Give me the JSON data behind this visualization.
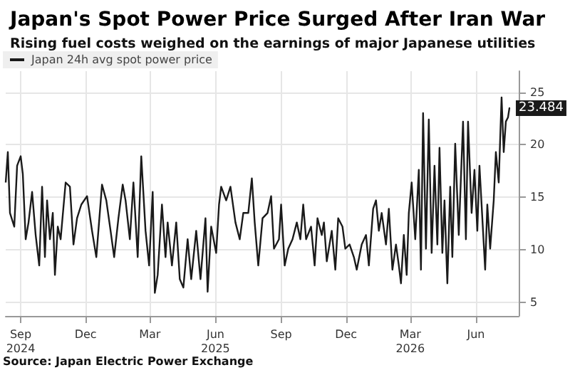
{
  "chart_data": {
    "type": "line",
    "title": "Japan's Spot Power Price Surged After Iran War",
    "subtitle": "Rising fuel costs weighed on the earnings of major Japanese utilities",
    "x": [
      "2024-08-25",
      "2024-08-28",
      "2024-08-31",
      "2024-09-06",
      "2024-09-10",
      "2024-09-15",
      "2024-09-18",
      "2024-09-22",
      "2024-09-26",
      "2024-10-01",
      "2024-10-06",
      "2024-10-11",
      "2024-10-15",
      "2024-10-19",
      "2024-10-22",
      "2024-10-26",
      "2024-10-30",
      "2024-11-02",
      "2024-11-06",
      "2024-11-10",
      "2024-11-17",
      "2024-11-23",
      "2024-11-28",
      "2024-12-03",
      "2024-12-09",
      "2024-12-17",
      "2024-12-24",
      "2024-12-30",
      "2025-01-07",
      "2025-01-13",
      "2025-01-19",
      "2025-01-24",
      "2025-01-30",
      "2025-02-05",
      "2025-02-09",
      "2025-02-15",
      "2025-02-20",
      "2025-02-26",
      "2025-03-03",
      "2025-03-09",
      "2025-03-14",
      "2025-03-19",
      "2025-03-22",
      "2025-03-26",
      "2025-04-01",
      "2025-04-06",
      "2025-04-09",
      "2025-04-15",
      "2025-04-21",
      "2025-04-26",
      "2025-05-01",
      "2025-05-07",
      "2025-05-12",
      "2025-05-19",
      "2025-05-25",
      "2025-06-01",
      "2025-06-04",
      "2025-06-09",
      "2025-06-16",
      "2025-06-20",
      "2025-06-23",
      "2025-06-30",
      "2025-07-06",
      "2025-07-13",
      "2025-07-19",
      "2025-07-24",
      "2025-07-31",
      "2025-08-05",
      "2025-08-09",
      "2025-08-14",
      "2025-08-20",
      "2025-08-27",
      "2025-09-01",
      "2025-09-05",
      "2025-09-12",
      "2025-09-15",
      "2025-09-20",
      "2025-09-25",
      "2025-10-01",
      "2025-10-07",
      "2025-10-12",
      "2025-10-16",
      "2025-10-20",
      "2025-10-27",
      "2025-11-01",
      "2025-11-05",
      "2025-11-11",
      "2025-11-14",
      "2025-11-18",
      "2025-11-25",
      "2025-11-30",
      "2025-12-04",
      "2025-12-10",
      "2025-12-14",
      "2025-12-20",
      "2025-12-26",
      "2025-12-30",
      "2026-01-06",
      "2026-01-12",
      "2026-01-16",
      "2026-01-22",
      "2026-01-26",
      "2026-01-30",
      "2026-02-03",
      "2026-02-09",
      "2026-02-13",
      "2026-02-18",
      "2026-02-23",
      "2026-02-27",
      "2026-03-02",
      "2026-03-06",
      "2026-03-10",
      "2026-03-13",
      "2026-03-17",
      "2026-03-22",
      "2026-03-27",
      "2026-03-30",
      "2026-04-02",
      "2026-04-06",
      "2026-04-10",
      "2026-04-14",
      "2026-04-18",
      "2026-04-22",
      "2026-04-25",
      "2026-04-29",
      "2026-05-02",
      "2026-05-06",
      "2026-05-10",
      "2026-05-13",
      "2026-05-17",
      "2026-05-22",
      "2026-05-28",
      "2026-06-01",
      "2026-06-04",
      "2026-06-09",
      "2026-06-13",
      "2026-06-17",
      "2026-06-20",
      "2026-06-25",
      "2026-06-28",
      "2026-07-01",
      "2026-07-05",
      "2026-07-10",
      "2026-07-13",
      "2026-07-17",
      "2026-07-21",
      "2026-07-24",
      "2026-07-27",
      "2026-07-30",
      "2026-08-01"
    ],
    "series": [
      {
        "name": "Japan 24h avg spot power price",
        "color": "#1a1a1a",
        "values": [
          16.4,
          19.3,
          13.5,
          12.2,
          18.0,
          18.9,
          17.2,
          11.0,
          12.6,
          15.5,
          11.4,
          8.5,
          16.0,
          9.3,
          14.7,
          11.0,
          13.5,
          7.6,
          12.2,
          11.0,
          16.4,
          16.0,
          10.5,
          13.0,
          14.3,
          15.1,
          11.8,
          9.3,
          16.2,
          14.7,
          11.8,
          9.3,
          13.0,
          16.2,
          14.7,
          11.0,
          16.4,
          9.3,
          18.9,
          11.8,
          8.5,
          15.5,
          5.9,
          7.6,
          14.3,
          9.3,
          12.6,
          8.5,
          12.6,
          7.2,
          6.4,
          11.0,
          7.2,
          11.8,
          7.2,
          13.0,
          6.0,
          12.2,
          9.7,
          14.3,
          16.0,
          14.7,
          16.0,
          12.6,
          11.0,
          13.5,
          13.5,
          16.8,
          12.6,
          8.5,
          13.0,
          13.5,
          15.1,
          10.1,
          11.0,
          14.3,
          8.5,
          10.1,
          11.0,
          12.6,
          11.0,
          14.3,
          11.0,
          12.2,
          8.5,
          13.0,
          11.4,
          12.6,
          8.9,
          11.8,
          8.1,
          13.0,
          12.2,
          10.1,
          10.5,
          9.3,
          8.1,
          10.5,
          11.4,
          8.5,
          13.9,
          14.7,
          11.8,
          13.5,
          10.5,
          13.9,
          8.1,
          10.5,
          8.5,
          6.8,
          11.4,
          7.6,
          13.5,
          16.4,
          11.0,
          17.6,
          8.1,
          23.0,
          10.1,
          22.4,
          9.7,
          18.0,
          10.5,
          19.7,
          9.7,
          14.7,
          6.8,
          16.0,
          9.3,
          20.1,
          11.4,
          22.2,
          11.0,
          22.2,
          13.5,
          17.6,
          11.8,
          18.0,
          11.8,
          8.1,
          14.3,
          10.1,
          14.7,
          19.3,
          16.4,
          24.5,
          19.3,
          22.2,
          22.6,
          23.484
        ]
      }
    ],
    "xlim": [
      "2024-08-25",
      "2026-08-14"
    ],
    "xticks": [
      {
        "value": "2024-09-15",
        "label": "Sep\n2024"
      },
      {
        "value": "2024-12-15",
        "label": "Dec"
      },
      {
        "value": "2025-03-15",
        "label": "Mar"
      },
      {
        "value": "2025-06-15",
        "label": "Jun\n2025"
      },
      {
        "value": "2025-09-15",
        "label": "Sep"
      },
      {
        "value": "2025-12-15",
        "label": "Dec"
      },
      {
        "value": "2026-03-15",
        "label": "Mar\n2026"
      },
      {
        "value": "2026-06-15",
        "label": "Jun"
      }
    ],
    "ylim": [
      3.7,
      27
    ],
    "yticks": [
      5,
      10,
      15,
      20,
      25
    ],
    "grid": true,
    "legend": "top left",
    "marker": "none",
    "line_style": "solid",
    "annotations": [
      {
        "text": "23.484",
        "x": "2026-08-01",
        "y": 23.484
      },
      "Source: Japan Electric Power Exchange"
    ]
  }
}
